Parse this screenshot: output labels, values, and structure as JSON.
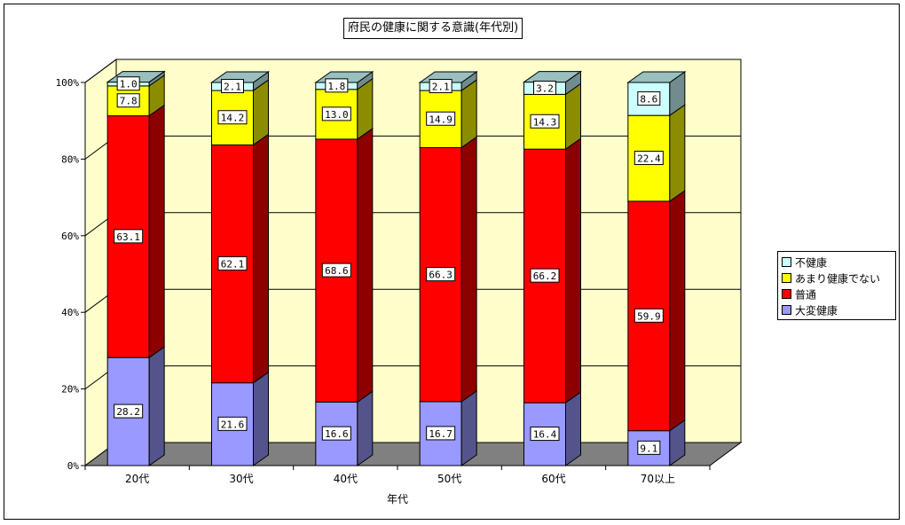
{
  "chart_data": {
    "type": "bar",
    "stacked": true,
    "three_d": true,
    "title": "府民の健康に関する意識(年代別)",
    "xlabel": "年代",
    "ylabel": "",
    "categories": [
      "20代",
      "30代",
      "40代",
      "50代",
      "60代",
      "70以上"
    ],
    "y_ticks": [
      "0%",
      "20%",
      "40%",
      "60%",
      "80%",
      "100%"
    ],
    "ylim": [
      0,
      100
    ],
    "grid": true,
    "legend_position": "right",
    "series": [
      {
        "name": "大変健康",
        "color": "#9999ff",
        "values": [
          28.2,
          21.6,
          16.6,
          16.7,
          16.4,
          9.1
        ]
      },
      {
        "name": "普通",
        "color": "#ff0000",
        "values": [
          63.1,
          62.1,
          68.6,
          66.3,
          66.2,
          59.9
        ]
      },
      {
        "name": "あまり健康でない",
        "color": "#ffff00",
        "values": [
          7.8,
          14.2,
          13.0,
          14.9,
          14.3,
          22.4
        ]
      },
      {
        "name": "不健康",
        "color": "#ccffff",
        "values": [
          1.0,
          2.1,
          1.8,
          2.1,
          3.2,
          8.6
        ]
      }
    ],
    "legend_order": [
      "不健康",
      "あまり健康でない",
      "普通",
      "大変健康"
    ],
    "colors": {
      "wall": "#ffffcc",
      "floor": "#808080"
    }
  }
}
